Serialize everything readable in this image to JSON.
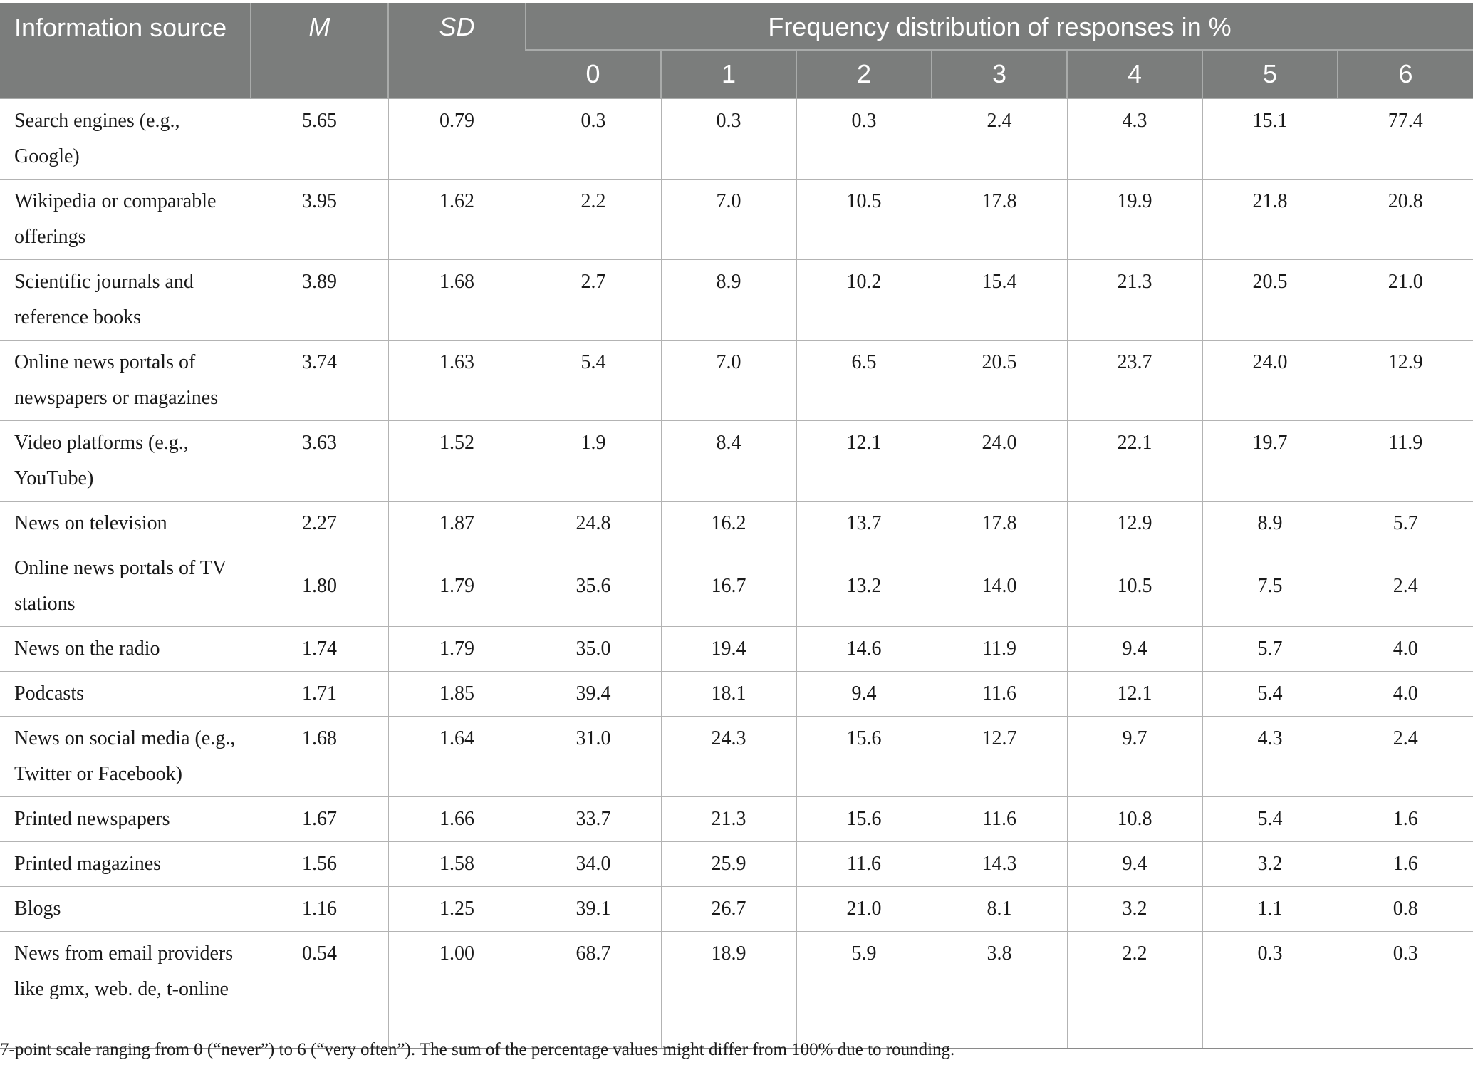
{
  "table": {
    "header": {
      "source": "Information source",
      "m": "M",
      "sd": "SD",
      "freq": "Frequency distribution of responses in %",
      "scale": [
        "0",
        "1",
        "2",
        "3",
        "4",
        "5",
        "6"
      ]
    },
    "rows": [
      {
        "source": "Search engines (e.g., Google)",
        "m": "5.65",
        "sd": "0.79",
        "freq": [
          "0.3",
          "0.3",
          "0.3",
          "2.4",
          "4.3",
          "15.1",
          "77.4"
        ]
      },
      {
        "source": "Wikipedia or comparable offerings",
        "m": "3.95",
        "sd": "1.62",
        "freq": [
          "2.2",
          "7.0",
          "10.5",
          "17.8",
          "19.9",
          "21.8",
          "20.8"
        ]
      },
      {
        "source": "Scientific journals and reference books",
        "m": "3.89",
        "sd": "1.68",
        "freq": [
          "2.7",
          "8.9",
          "10.2",
          "15.4",
          "21.3",
          "20.5",
          "21.0"
        ]
      },
      {
        "source": "Online news portals of newspapers or magazines",
        "m": "3.74",
        "sd": "1.63",
        "freq": [
          "5.4",
          "7.0",
          "6.5",
          "20.5",
          "23.7",
          "24.0",
          "12.9"
        ]
      },
      {
        "source": "Video platforms (e.g., YouTube)",
        "m": "3.63",
        "sd": "1.52",
        "freq": [
          "1.9",
          "8.4",
          "12.1",
          "24.0",
          "22.1",
          "19.7",
          "11.9"
        ]
      },
      {
        "source": "News on television",
        "m": "2.27",
        "sd": "1.87",
        "freq": [
          "24.8",
          "16.2",
          "13.7",
          "17.8",
          "12.9",
          "8.9",
          "5.7"
        ]
      },
      {
        "source": "Online news portals of TV stations",
        "m": "1.80",
        "sd": "1.79",
        "freq": [
          "35.6",
          "16.7",
          "13.2",
          "14.0",
          "10.5",
          "7.5",
          "2.4"
        ]
      },
      {
        "source": "News on the radio",
        "m": "1.74",
        "sd": "1.79",
        "freq": [
          "35.0",
          "19.4",
          "14.6",
          "11.9",
          "9.4",
          "5.7",
          "4.0"
        ]
      },
      {
        "source": "Podcasts",
        "m": "1.71",
        "sd": "1.85",
        "freq": [
          "39.4",
          "18.1",
          "9.4",
          "11.6",
          "12.1",
          "5.4",
          "4.0"
        ]
      },
      {
        "source": "News on social media (e.g., Twitter or Facebook)",
        "m": "1.68",
        "sd": "1.64",
        "freq": [
          "31.0",
          "24.3",
          "15.6",
          "12.7",
          "9.7",
          "4.3",
          "2.4"
        ]
      },
      {
        "source": "Printed newspapers",
        "m": "1.67",
        "sd": "1.66",
        "freq": [
          "33.7",
          "21.3",
          "15.6",
          "11.6",
          "10.8",
          "5.4",
          "1.6"
        ]
      },
      {
        "source": "Printed magazines",
        "m": "1.56",
        "sd": "1.58",
        "freq": [
          "34.0",
          "25.9",
          "11.6",
          "14.3",
          "9.4",
          "3.2",
          "1.6"
        ]
      },
      {
        "source": "Blogs",
        "m": "1.16",
        "sd": "1.25",
        "freq": [
          "39.1",
          "26.7",
          "21.0",
          "8.1",
          "3.2",
          "1.1",
          "0.8"
        ]
      },
      {
        "source": "News from email providers like gmx, web. de, t-online",
        "m": "0.54",
        "sd": "1.00",
        "freq": [
          "68.7",
          "18.9",
          "5.9",
          "3.8",
          "2.2",
          "0.3",
          "0.3"
        ]
      }
    ]
  },
  "note": "7-point scale ranging from 0 (“never”) to 6 (“very often”). The sum of the percentage values might differ from 100% due to rounding."
}
